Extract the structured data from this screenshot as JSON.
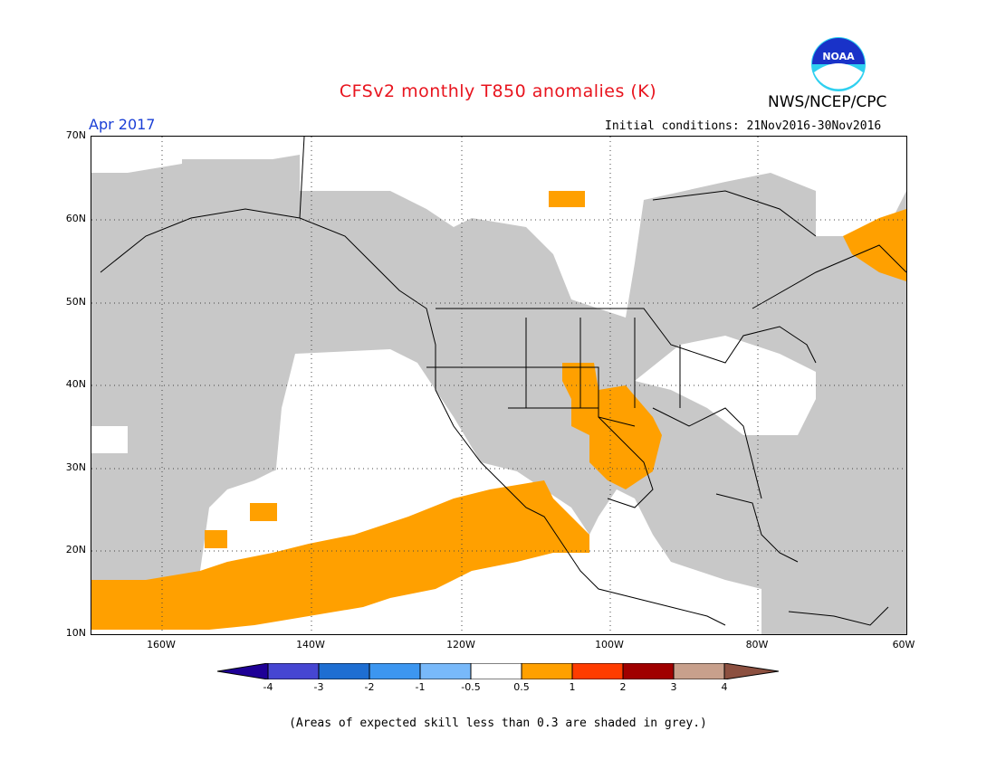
{
  "header": {
    "title": "CFSv2 monthly T850 anomalies (K)",
    "org": "NWS/NCEP/CPC",
    "month": "Apr 2017",
    "initial_conditions": "Initial conditions: 21Nov2016-30Nov2016",
    "logo_text": "NOAA"
  },
  "map": {
    "lat_labels": [
      "70N",
      "60N",
      "50N",
      "40N",
      "30N",
      "20N",
      "10N"
    ],
    "lon_labels": [
      "160W",
      "140W",
      "120W",
      "100W",
      "80W",
      "60W"
    ],
    "colors": {
      "low_skill_grey": "#c8c8c8",
      "anomaly_0_5_to_1": "#ffa000",
      "land_outline": "#000000",
      "grid": "#444444"
    }
  },
  "colorbar": {
    "labels": [
      "-4",
      "-3",
      "-2",
      "-1",
      "-0.5",
      "0.5",
      "1",
      "2",
      "3",
      "4"
    ],
    "colors": [
      "#1e0096",
      "#4646d2",
      "#1e6ed2",
      "#3c96f0",
      "#78b9fa",
      "#ffffff",
      "#ffa000",
      "#ff3c00",
      "#a00000",
      "#c8a08c",
      "#8c5040"
    ]
  },
  "footnote": "(Areas of expected skill less than 0.3 are shaded in grey.)"
}
